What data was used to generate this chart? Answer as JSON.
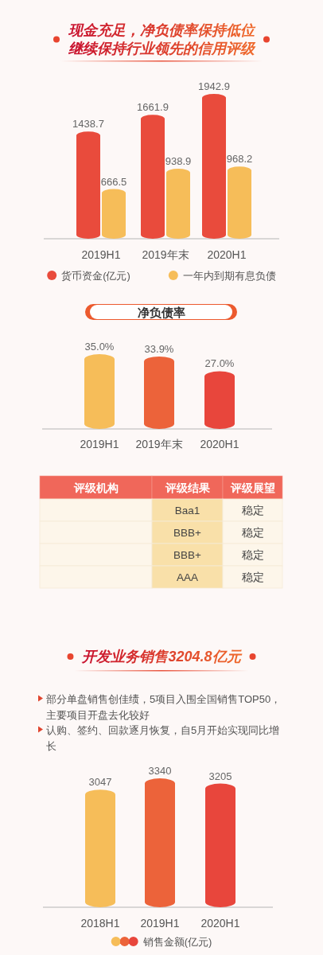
{
  "chart_data": [
    {
      "type": "bar",
      "title": "现金充足，净负债率保持低位",
      "subtitle": "继续保持行业领先的信用评级",
      "categories": [
        "2019H1",
        "2019年末",
        "2020H1"
      ],
      "series": [
        {
          "name": "货币资金(亿元)",
          "color": "#e94b3c",
          "values": [
            1438.7,
            1661.9,
            1942.9
          ]
        },
        {
          "name": "一年内到期有息负债",
          "color": "#f6bd59",
          "values": [
            666.5,
            938.9,
            968.2
          ]
        }
      ],
      "data_labels": true,
      "legend": "bottom"
    },
    {
      "type": "bar",
      "title": "净负债率",
      "categories": [
        "2019H1",
        "2019年末",
        "2020H1"
      ],
      "values": [
        35.0,
        33.9,
        27.0
      ],
      "colors": [
        "#f6bd59",
        "#ec633a",
        "#e8463c"
      ],
      "value_labels": [
        "35.0%",
        "33.9%",
        "27.0%"
      ]
    },
    {
      "type": "other",
      "categories": [
        "评级机构",
        "评级结果",
        "评级展望"
      ],
      "cell_labels": [
        [
          null,
          "Baa1",
          "稳定"
        ],
        [
          null,
          "BBB+",
          "稳定"
        ],
        [
          null,
          "BBB+",
          "稳定"
        ],
        [
          null,
          "AAA",
          "稳定"
        ]
      ]
    },
    {
      "type": "bar",
      "title": "开发业务销售3204.8亿元",
      "annotations": [
        "部分单盘销售创佳绩，5项目入围全国销售TOP50，主要项目开盘去化较好",
        "认购、签约、回款逐月恢复，自5月开始实现同比增长"
      ],
      "categories": [
        "2018H1",
        "2019H1",
        "2020H1"
      ],
      "series": [
        {
          "name": "销售金额(亿元)",
          "colors": [
            "#f6bd59",
            "#ec633a",
            "#e8463c"
          ],
          "values": [
            3047,
            3340,
            3205
          ]
        }
      ],
      "data_labels": true,
      "legend": "bottom"
    }
  ]
}
